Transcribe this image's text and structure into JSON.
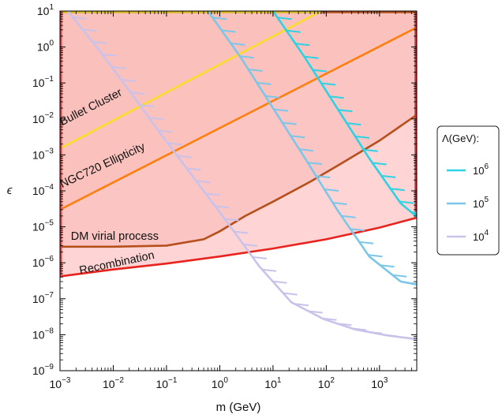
{
  "chart_data": {
    "type": "line",
    "xlabel": "m (GeV)",
    "ylabel": "ϵ",
    "xscale": "log",
    "yscale": "log",
    "xlim": [
      0.001,
      5000
    ],
    "ylim": [
      1e-09,
      10
    ],
    "grid": false,
    "legend_position": "right",
    "x_ticks": [
      {
        "value": 0.001,
        "base": "10",
        "exp": "−3"
      },
      {
        "value": 0.01,
        "base": "10",
        "exp": "−2"
      },
      {
        "value": 0.1,
        "base": "10",
        "exp": "−1"
      },
      {
        "value": 1,
        "base": "10",
        "exp": "0"
      },
      {
        "value": 10,
        "base": "10",
        "exp": "1"
      },
      {
        "value": 100,
        "base": "10",
        "exp": "2"
      },
      {
        "value": 1000,
        "base": "10",
        "exp": "3"
      }
    ],
    "y_ticks": [
      {
        "value": 10,
        "base": "10",
        "exp": "1"
      },
      {
        "value": 1,
        "base": "10",
        "exp": "0"
      },
      {
        "value": 0.1,
        "base": "10",
        "exp": "−1"
      },
      {
        "value": 0.01,
        "base": "10",
        "exp": "−2"
      },
      {
        "value": 0.001,
        "base": "10",
        "exp": "−3"
      },
      {
        "value": 0.0001,
        "base": "10",
        "exp": "−4"
      },
      {
        "value": 1e-05,
        "base": "10",
        "exp": "−5"
      },
      {
        "value": 1e-06,
        "base": "10",
        "exp": "−6"
      },
      {
        "value": 1e-07,
        "base": "10",
        "exp": "−7"
      },
      {
        "value": 1e-08,
        "base": "10",
        "exp": "−8"
      },
      {
        "value": 1e-09,
        "base": "10",
        "exp": "−9"
      }
    ],
    "regions": [
      {
        "label": "Bullet Cluster",
        "color": "#f9dc2a",
        "fill": "#f6c56a",
        "x": [
          0.001,
          80
        ],
        "y": [
          0.0015,
          10
        ],
        "label_at": {
          "x": 0.0011,
          "y": 0.0065
        }
      },
      {
        "label": "NGC720 Ellipticity",
        "color": "#ff7f0e",
        "fill": "#f2a17c",
        "x": [
          0.001,
          5000
        ],
        "y": [
          3e-05,
          3.5
        ],
        "label_at": {
          "x": 0.0011,
          "y": 0.00012
        }
      },
      {
        "label": "DM virial process",
        "color": "#b5501c",
        "fill": "#efb0a8",
        "x": [
          0.001,
          0.01,
          0.1,
          0.5,
          1,
          3,
          10,
          50,
          200,
          1000,
          5000
        ],
        "y": [
          2.8e-06,
          2.8e-06,
          3e-06,
          4.5e-06,
          7.5e-06,
          2e-05,
          5e-05,
          0.00018,
          0.0006,
          0.0025,
          0.013
        ],
        "label_at": {
          "x": 0.0016,
          "y": 4.4e-06
        }
      },
      {
        "label": "Recombination",
        "color": "#e8231d",
        "fill": "#fdc6c6",
        "x": [
          0.001,
          0.01,
          0.1,
          1,
          10,
          100,
          1000,
          5000
        ],
        "y": [
          4.2e-07,
          6.5e-07,
          9.5e-07,
          1.5e-06,
          2.5e-06,
          4.5e-06,
          9.5e-06,
          1.8e-05
        ],
        "label_at": {
          "x": 0.0024,
          "y": 4.8e-07
        }
      }
    ],
    "legend_title": "Λ(GeV):",
    "series": [
      {
        "name": "10^6",
        "base": "10",
        "exp": "6",
        "color": "#2bd3e4",
        "x": [
          10,
          40,
          160,
          640,
          2500,
          5000
        ],
        "y": [
          10,
          0.5,
          0.02,
          0.0008,
          4.5e-05,
          1.9e-05
        ]
      },
      {
        "name": "10^5",
        "base": "10",
        "exp": "5",
        "color": "#7cc6ea",
        "x": [
          0.6,
          2.5,
          10,
          40,
          160,
          640,
          2500,
          5000
        ],
        "y": [
          10,
          0.5,
          0.02,
          0.0008,
          3e-05,
          1.5e-06,
          3e-07,
          2.5e-07
        ]
      },
      {
        "name": "10^4",
        "base": "10",
        "exp": "4",
        "color": "#c9c2ea",
        "x": [
          0.0014,
          0.0055,
          0.022,
          0.088,
          0.35,
          1.4,
          5.5,
          22,
          90,
          350,
          1400,
          5000
        ],
        "y": [
          10,
          0.8,
          0.05,
          0.003,
          0.0002,
          1.3e-05,
          8e-07,
          8e-08,
          2.7e-08,
          1.4e-08,
          9.5e-09,
          7.5e-09
        ]
      }
    ]
  }
}
